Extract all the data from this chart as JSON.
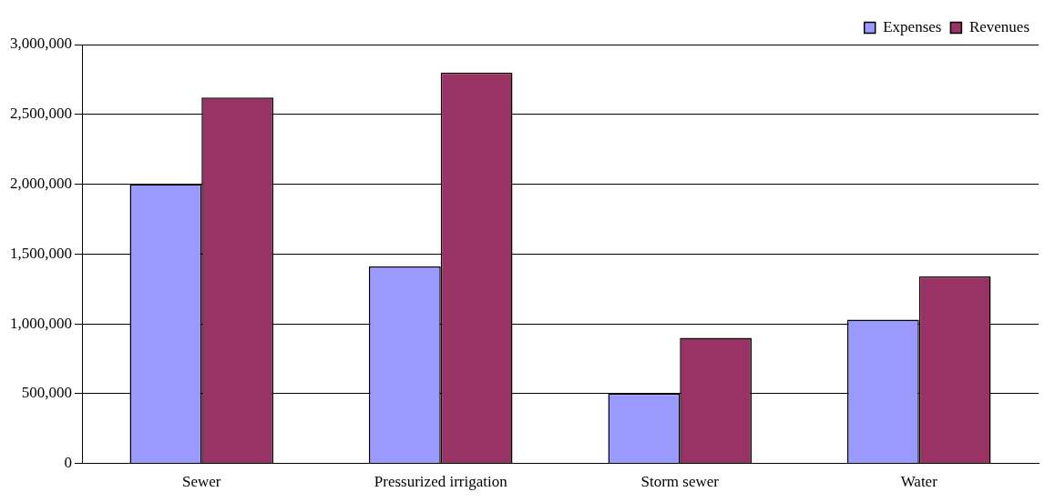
{
  "chart_data": {
    "type": "bar",
    "categories": [
      "Sewer",
      "Pressurized irrigation",
      "Storm sewer",
      "Water"
    ],
    "series": [
      {
        "name": "Expenses",
        "color": "#9999ff",
        "values": [
          2000000,
          1410000,
          500000,
          1030000
        ]
      },
      {
        "name": "Revenues",
        "color": "#993366",
        "values": [
          2620000,
          2800000,
          900000,
          1340000
        ]
      }
    ],
    "ylim": [
      0,
      3000000
    ],
    "yticks": [
      0,
      {
        "value": 500000,
        "label": "500,000"
      },
      {
        "value": 1000000,
        "label": "1,000,000"
      },
      {
        "value": 1500000,
        "label": "1,500,000"
      },
      {
        "value": 2000000,
        "label": "2,000,000"
      },
      {
        "value": 2500000,
        "label": "2,500,000"
      },
      {
        "value": 3000000,
        "label": "3,000,000"
      }
    ],
    "grid": "y",
    "legend": "top right"
  }
}
